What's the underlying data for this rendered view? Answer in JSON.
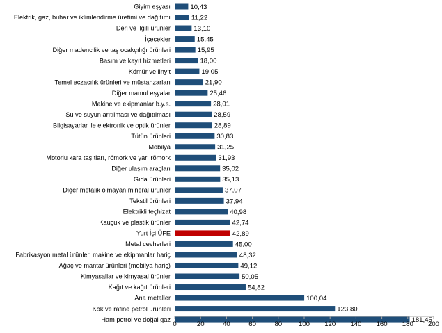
{
  "chart_data": {
    "type": "bar",
    "orientation": "horizontal",
    "title": "",
    "xlabel": "",
    "ylabel": "",
    "xlim": [
      0,
      200
    ],
    "xticks": [
      0,
      20,
      40,
      60,
      80,
      100,
      120,
      140,
      160,
      180,
      200
    ],
    "grid": false,
    "legend": "none",
    "colors": {
      "default": "#1F4E79",
      "highlight": "#C00000"
    },
    "highlight_category": "Yurt İçi ÜFE",
    "categories": [
      "Giyim eşyası",
      "Elektrik, gaz, buhar ve iklimlendirme üretimi ve dağıtımı",
      "Deri ve ilgili ürünler",
      "İçecekler",
      "Diğer madencilik ve taş ocakçılığı ürünleri",
      "Basım ve kayıt hizmetleri",
      "Kömür ve linyit",
      "Temel eczacılık ürünleri ve müstahzarları",
      "Diğer mamul eşyalar",
      "Makine ve ekipmanlar b.y.s.",
      "Su ve suyun arıtılması ve dağıtılması",
      "Bilgisayarlar ile elektronik ve optik ürünler",
      "Tütün ürünleri",
      "Mobilya",
      "Motorlu kara taşıtları, römork ve yarı römork",
      "Diğer ulaşım araçları",
      "Gıda ürünleri",
      "Diğer metalik olmayan mineral ürünler",
      "Tekstil ürünleri",
      "Elektrikli teçhizat",
      "Kauçuk ve plastik ürünler",
      "Yurt İçi ÜFE",
      "Metal cevherleri",
      "Fabrikasyon metal ürünler, makine ve ekipmanlar hariç",
      "Ağaç ve mantar ürünleri (mobilya hariç)",
      "Kimyasallar ve kimyasal ürünler",
      "Kağıt ve kağıt ürünleri",
      "Ana metaller",
      "Kok ve rafine petrol ürünleri",
      "Ham petrol ve doğal gaz"
    ],
    "values": [
      10.43,
      11.22,
      13.1,
      15.45,
      15.95,
      18.0,
      19.05,
      21.9,
      25.46,
      28.01,
      28.59,
      28.89,
      30.83,
      31.25,
      31.93,
      35.02,
      35.13,
      37.07,
      37.94,
      40.98,
      42.74,
      42.89,
      45.0,
      48.32,
      49.12,
      50.05,
      54.82,
      100.04,
      123.8,
      181.45
    ],
    "value_labels": [
      "10,43",
      "11,22",
      "13,10",
      "15,45",
      "15,95",
      "18,00",
      "19,05",
      "21,90",
      "25,46",
      "28,01",
      "28,59",
      "28,89",
      "30,83",
      "31,25",
      "31,93",
      "35,02",
      "35,13",
      "37,07",
      "37,94",
      "40,98",
      "42,74",
      "42,89",
      "45,00",
      "48,32",
      "49,12",
      "50,05",
      "54,82",
      "100,04",
      "123,80",
      "181,45"
    ]
  }
}
